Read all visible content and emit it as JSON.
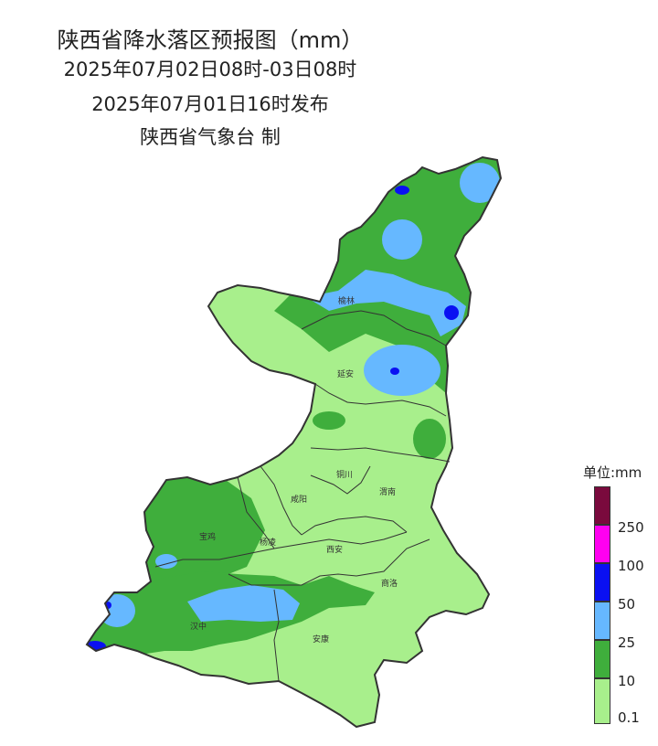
{
  "title": "陕西省降水落区预报图（mm）",
  "valid_period": "2025年07月02日08时-03日08时",
  "issued": "2025年07月01日16时发布",
  "issuer": "陕西省气象台 制",
  "cities": [
    "榆林",
    "延安",
    "铜川",
    "渭南",
    "咸阳",
    "宝鸡",
    "杨凌",
    "西安",
    "商洛",
    "汉中",
    "安康"
  ],
  "legend": {
    "title": "单位:mm",
    "bins": [
      {
        "label": "0.1",
        "color": "#a8ef8c"
      },
      {
        "label": "10",
        "color": "#3fae3c"
      },
      {
        "label": "25",
        "color": "#66b8ff"
      },
      {
        "label": "50",
        "color": "#0a10f2"
      },
      {
        "label": "100",
        "color": "#ff00f0"
      },
      {
        "label": "250",
        "color": "#7a0a3d"
      }
    ]
  },
  "colors": {
    "boundary": "#333333",
    "background": "#ffffff"
  }
}
